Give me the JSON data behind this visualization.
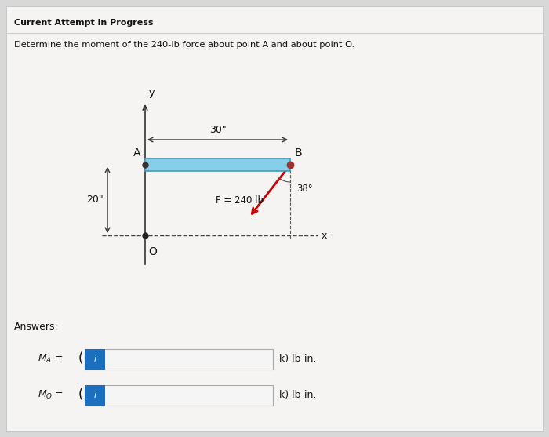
{
  "title_line1": "Current Attempt in Progress",
  "title_line2": "Determine the moment of the 240-lb force about point A and about point O.",
  "background_color": "#d8d8d8",
  "panel_color": "#e8e8e8",
  "bar_color": "#87CEEB",
  "bar_edge_color": "#4a9ab5",
  "force_arrow_color": "#cc0000",
  "axis_color": "#333333",
  "dim_color": "#333333",
  "label_A": "A",
  "label_B": "B",
  "label_O": "O",
  "label_x": "x",
  "label_y": "y",
  "dim_30": "30\"",
  "dim_20": "20\"",
  "angle_label": "38°",
  "force_label": "F = 240 lb",
  "answers_label": "Answers:",
  "units_label": "k) lb-in.",
  "input_box_color": "#1a6fbf",
  "input_icon": "i"
}
